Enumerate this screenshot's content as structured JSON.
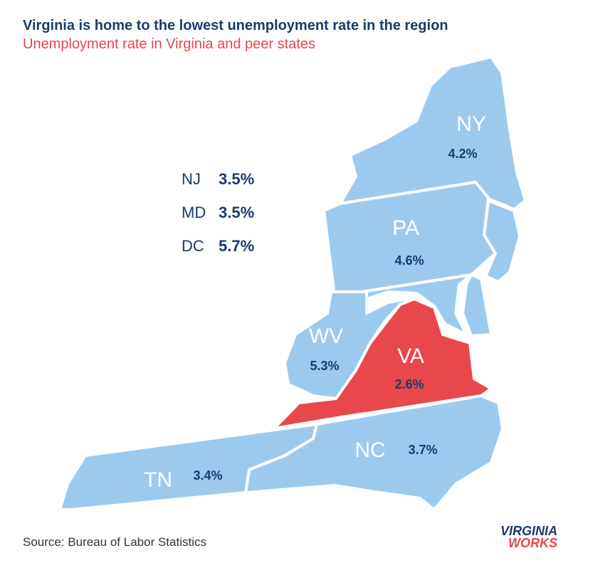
{
  "header": {
    "title": "Virginia is home to the lowest unemployment rate in the region",
    "subtitle": "Unemployment rate in Virginia and peer states"
  },
  "states": [
    {
      "label": "NY",
      "rate": "4.2%"
    },
    {
      "label": "PA",
      "rate": "4.6%"
    },
    {
      "label": "WV",
      "rate": "5.3%"
    },
    {
      "label": "VA",
      "rate": "2.6%"
    },
    {
      "label": "NC",
      "rate": "3.7%"
    },
    {
      "label": "TN",
      "rate": "3.4%"
    }
  ],
  "inset_list": [
    {
      "label": "NJ",
      "rate": "3.5%"
    },
    {
      "label": "MD",
      "rate": "3.5%"
    },
    {
      "label": "DC",
      "rate": "5.7%"
    }
  ],
  "source": "Source: Bureau of Labor Statistics",
  "logo": {
    "line1": "VIRGINIA",
    "line2": "WORKS"
  }
}
